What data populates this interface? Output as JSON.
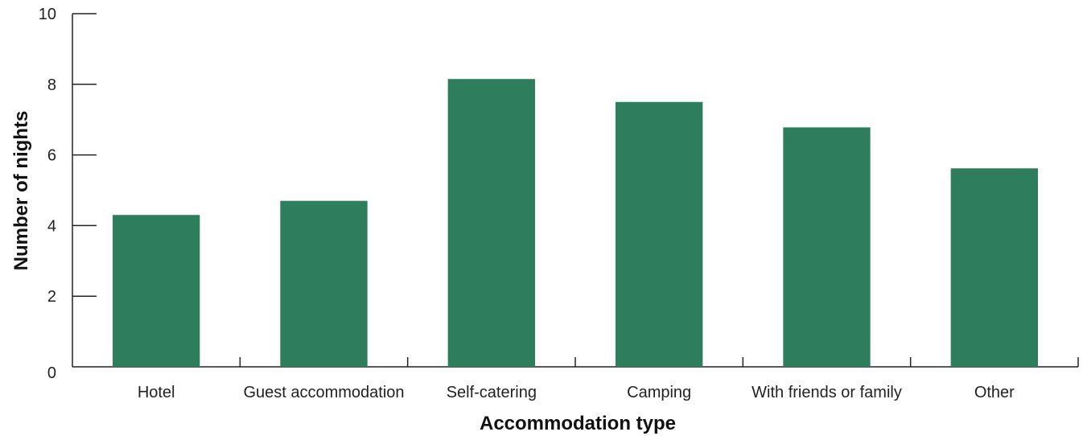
{
  "chart_data": {
    "type": "bar",
    "categories": [
      "Hotel",
      "Guest accommodation",
      "Self-catering",
      "Camping",
      "With friends or family",
      "Other"
    ],
    "values": [
      4.3,
      4.7,
      8.15,
      7.5,
      6.78,
      5.62
    ],
    "xlabel": "Accommodation type",
    "ylabel": "Number of nights",
    "ylim": [
      0,
      10
    ],
    "yticks": [
      "0",
      "2",
      "4",
      "6",
      "8",
      "10"
    ],
    "bar_color": "#2e7d5c",
    "grid": false,
    "legend": "none"
  }
}
